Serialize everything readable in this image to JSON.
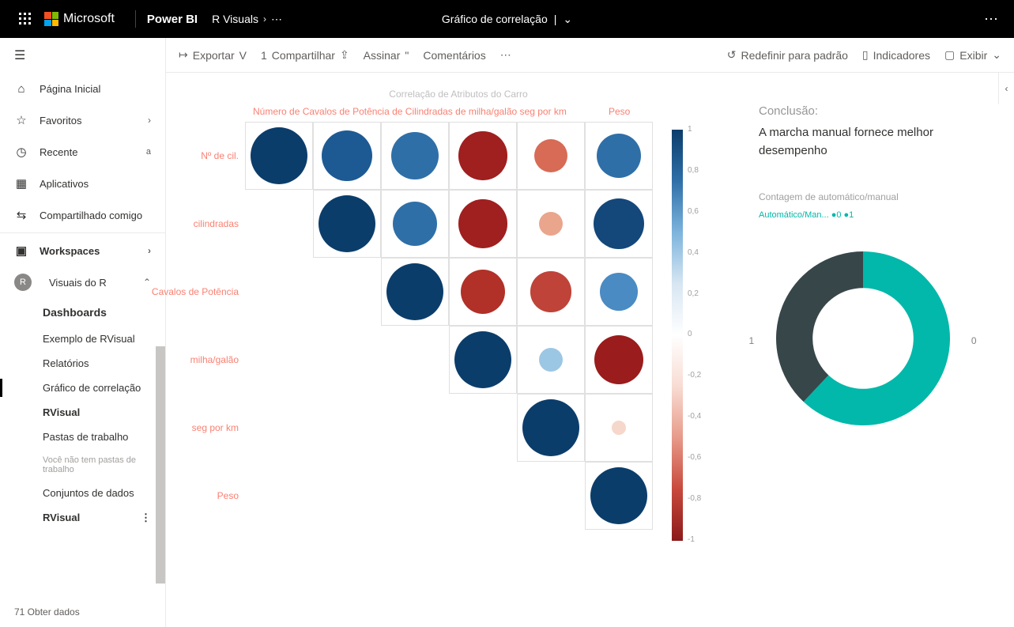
{
  "topbar": {
    "brand": "Microsoft",
    "app": "Power BI",
    "breadcrumb": "R Visuals",
    "report_title": "Gráfico de correlação",
    "ms_colors": [
      "#f25022",
      "#7fba00",
      "#00a4ef",
      "#ffb900"
    ]
  },
  "cmdbar": {
    "export": "Exportar",
    "share": "Compartilhar",
    "subscribe": "Assinar",
    "comments": "Comentários",
    "reset": "Redefinir para padrão",
    "bookmarks": "Indicadores",
    "view": "Exibir"
  },
  "nav": {
    "home": "Página Inicial",
    "favorites": "Favoritos",
    "recent": "Recente",
    "recent_tag": "a",
    "apps": "Aplicativos",
    "shared": "Compartilhado comigo",
    "workspaces": "Workspaces",
    "ws_current": "Visuais do R",
    "tree": {
      "dashboards": "Dashboards",
      "dash_item": "Exemplo de RVisual",
      "reports": "Relatórios",
      "report_item": "Gráfico de correlação",
      "rvisual": "RVisual",
      "workbooks": "Pastas de trabalho",
      "no_workbooks": "Você não tem pastas de trabalho",
      "datasets": "Conjuntos de dados",
      "dataset_item": "RVisual"
    },
    "get_data": "71 Obter dados"
  },
  "correlation": {
    "title": "Correlação de Atributos do Carro",
    "top_label": "Número de Cavalos de Potência de Cilindradas de milha/galão seg por km",
    "peso_top": "Peso",
    "rows": [
      "Nº de cil.",
      "cilindradas",
      "Cavalos de Potência",
      "milha/galão",
      "seg por km",
      "Peso"
    ],
    "legend_ticks": [
      "1",
      "0,8",
      "0,6",
      "0,4",
      "0,2",
      "0",
      "-0,2",
      "-0,4",
      "-0,6",
      "-0,8",
      "-1"
    ],
    "matrix": [
      [
        {
          "v": 1.0,
          "c": "#0b3d6b"
        },
        {
          "v": 0.9,
          "c": "#1d5a94"
        },
        {
          "v": 0.83,
          "c": "#2f6fa8"
        },
        {
          "v": -0.85,
          "c": "#a01f1f"
        },
        {
          "v": -0.59,
          "c": "#d76b55"
        },
        {
          "v": 0.78,
          "c": "#2f6fa8"
        }
      ],
      [
        null,
        {
          "v": 1.0,
          "c": "#0b3d6b"
        },
        {
          "v": 0.79,
          "c": "#2f6fa8"
        },
        {
          "v": -0.85,
          "c": "#a01f1f"
        },
        {
          "v": -0.43,
          "c": "#eaa58d"
        },
        {
          "v": 0.89,
          "c": "#14477a"
        }
      ],
      [
        null,
        null,
        {
          "v": 1.0,
          "c": "#0b3d6b"
        },
        {
          "v": -0.78,
          "c": "#b13028"
        },
        {
          "v": -0.71,
          "c": "#bf4338"
        },
        {
          "v": 0.66,
          "c": "#4a8bc3"
        }
      ],
      [
        null,
        null,
        null,
        {
          "v": 1.0,
          "c": "#0b3d6b"
        },
        {
          "v": 0.42,
          "c": "#9cc7e4"
        },
        {
          "v": -0.87,
          "c": "#9a1c1c"
        }
      ],
      [
        null,
        null,
        null,
        null,
        {
          "v": 1.0,
          "c": "#0b3d6b"
        },
        {
          "v": -0.17,
          "c": "#f6d7cb"
        }
      ],
      [
        null,
        null,
        null,
        null,
        null,
        {
          "v": 1.0,
          "c": "#0b3d6b"
        }
      ]
    ]
  },
  "conclusion": {
    "title": "Conclusão:",
    "text": "A marcha manual fornece melhor desempenho"
  },
  "donut": {
    "title": "Contagem de automático/manual",
    "legend": "Automático/Man... ●0 ●1",
    "series": [
      {
        "label": "0",
        "value": 0.62,
        "color": "#01b8aa"
      },
      {
        "label": "1",
        "value": 0.38,
        "color": "#374649"
      }
    ],
    "inner_ratio": 0.58,
    "label0": "0",
    "label1": "1"
  }
}
